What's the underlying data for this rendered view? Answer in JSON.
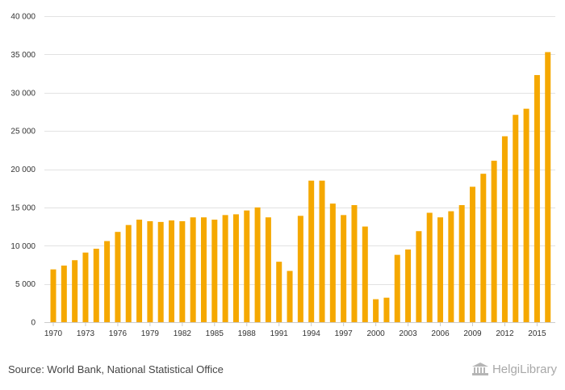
{
  "chart_data": {
    "type": "bar",
    "bar_color": "#F5A800",
    "grid_color": "#e2e2e2",
    "ylim": [
      0,
      40000
    ],
    "y_ticks": [
      0,
      5000,
      10000,
      15000,
      20000,
      25000,
      30000,
      35000,
      40000
    ],
    "y_tick_labels": [
      "0",
      "5 000",
      "10 000",
      "15 000",
      "20 000",
      "25 000",
      "30 000",
      "35 000",
      "40 000"
    ],
    "x_tick_labels": [
      "1970",
      "1973",
      "1976",
      "1979",
      "1982",
      "1985",
      "1988",
      "1991",
      "1994",
      "1997",
      "2000",
      "2003",
      "2006",
      "2009",
      "2012",
      "2015"
    ],
    "grid": true,
    "legend": "none",
    "categories": [
      "1970",
      "1971",
      "1972",
      "1973",
      "1974",
      "1975",
      "1976",
      "1977",
      "1978",
      "1979",
      "1980",
      "1981",
      "1982",
      "1983",
      "1984",
      "1985",
      "1986",
      "1987",
      "1988",
      "1989",
      "1990",
      "1991",
      "1992",
      "1993",
      "1994",
      "1995",
      "1996",
      "1997",
      "1998",
      "1999",
      "2000",
      "2001",
      "2002",
      "2003",
      "2004",
      "2005",
      "2006",
      "2007",
      "2008",
      "2009",
      "2010",
      "2011",
      "2012",
      "2013",
      "2014",
      "2015",
      "2016"
    ],
    "values": [
      6900,
      7400,
      8100,
      9100,
      9600,
      10600,
      11800,
      12700,
      13400,
      13200,
      13100,
      13300,
      13200,
      13700,
      13700,
      13400,
      14000,
      14100,
      14600,
      15000,
      13700,
      7900,
      6700,
      13900,
      18500,
      18500,
      15500,
      14000,
      15300,
      12500,
      3000,
      3200,
      8800,
      9500,
      11900,
      14300,
      13700,
      14500,
      15300,
      17700,
      19400,
      21100,
      24300,
      27100,
      27900,
      32300,
      35300
    ]
  },
  "source": "Source: World Bank, National Statistical Office",
  "logo": {
    "icon": "library-icon",
    "text": "HelgiLibrary"
  }
}
